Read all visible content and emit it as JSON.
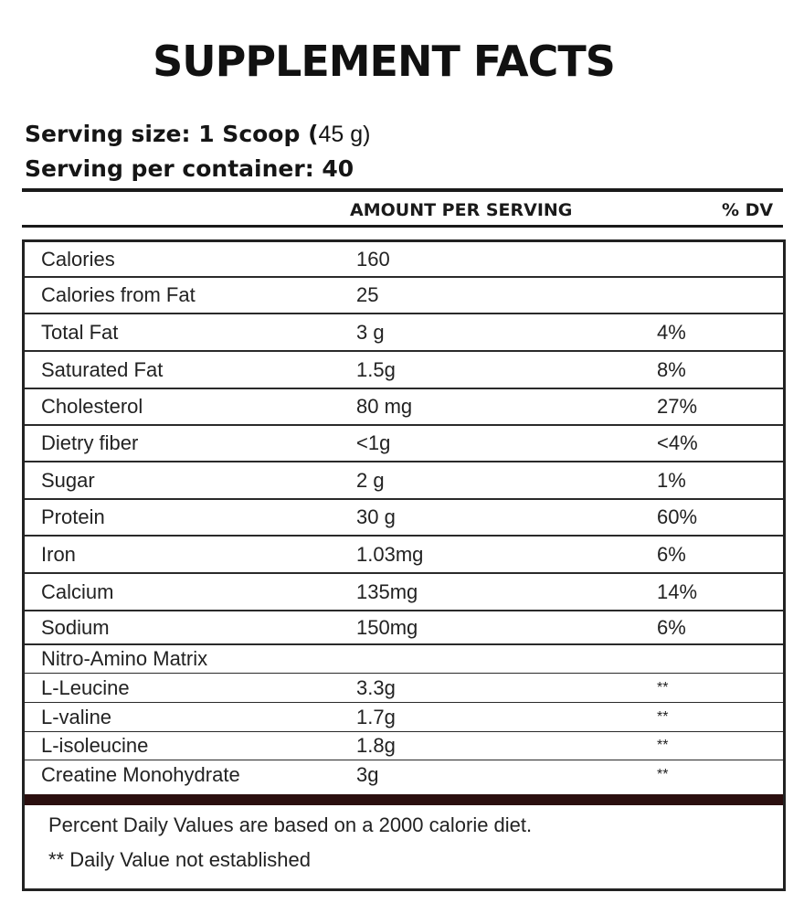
{
  "title": "SUPPLEMENT FACTS",
  "serving": {
    "size_label": "Serving size: 1 Scoop (",
    "size_value": "45 g)",
    "per_container": "Serving per container: 40"
  },
  "header": {
    "amount": "AMOUNT PER SERVING",
    "dv": "% DV"
  },
  "rows": [
    {
      "name": "Calories",
      "amount": "160",
      "dv": ""
    },
    {
      "name": "Calories from Fat",
      "amount": "25",
      "dv": ""
    },
    {
      "name": "Total Fat",
      "amount": "3 g",
      "dv": "4%"
    },
    {
      "name": "Saturated Fat",
      "amount": "1.5g",
      "dv": "8%"
    },
    {
      "name": "Cholesterol",
      "amount": "80 mg",
      "dv": "27%"
    },
    {
      "name": "Dietry fiber",
      "amount": "<1g",
      "dv": "<4%"
    },
    {
      "name": "Sugar",
      "amount": "2 g",
      "dv": "1%"
    },
    {
      "name": "Protein",
      "amount": "30 g",
      "dv": "60%"
    },
    {
      "name": "Iron",
      "amount": "1.03mg",
      "dv": "6%"
    },
    {
      "name": "Calcium",
      "amount": "135mg",
      "dv": "14%"
    },
    {
      "name": "Sodium",
      "amount": "150mg",
      "dv": "6%"
    },
    {
      "name": "Nitro-Amino Matrix",
      "amount": "",
      "dv": ""
    },
    {
      "name": "L-Leucine",
      "amount": "3.3g",
      "dv": "**"
    },
    {
      "name": "L-valine",
      "amount": "1.7g",
      "dv": "**"
    },
    {
      "name": "L-isoleucine",
      "amount": "1.8g",
      "dv": "**"
    },
    {
      "name": "Creatine Monohydrate",
      "amount": "3g",
      "dv": "**"
    }
  ],
  "footer": {
    "note1": "Percent Daily Values are based on a 2000 calorie diet.",
    "note2": "** Daily Value not established"
  },
  "colors": {
    "text": "#1a1a1a",
    "divider_band": "#2b0f0f"
  }
}
